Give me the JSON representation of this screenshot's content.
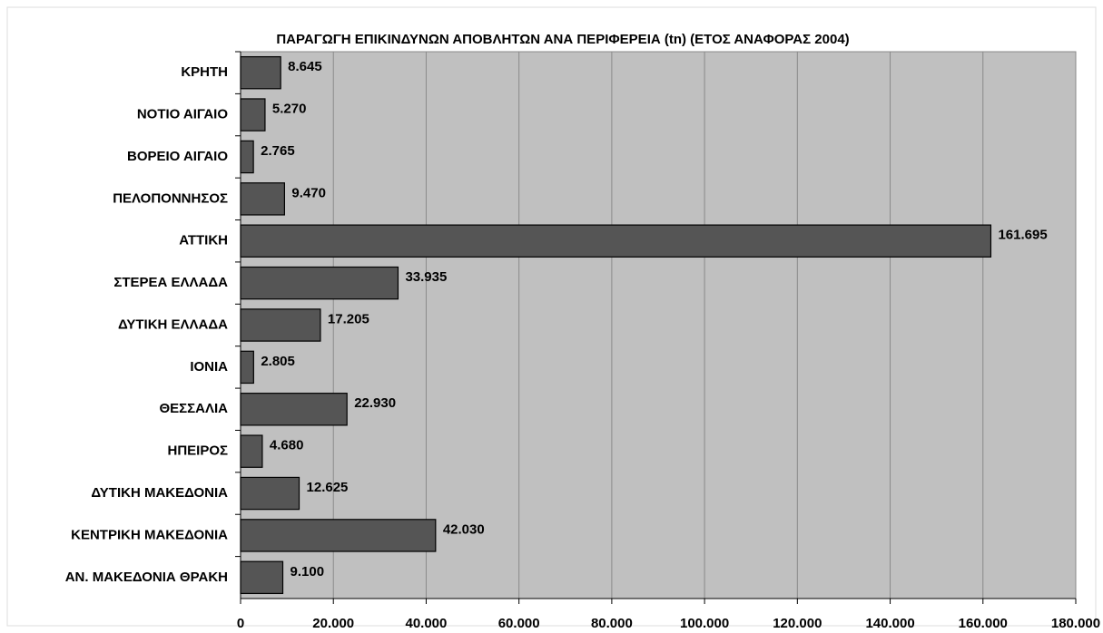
{
  "chart_data": {
    "type": "bar",
    "orientation": "horizontal",
    "title": "ΠΑΡΑΓΩΓΗ ΕΠΙΚΙΝΔΥΝΩΝ ΑΠΟΒΛΗΤΩΝ ΑΝΑ ΠΕΡΙΦΕΡΕΙΑ  (tn)  (ΕΤΟΣ ΑΝΑΦΟΡΑΣ 2004)",
    "categories": [
      "ΚΡΗΤΗ",
      "ΝΟΤΙΟ ΑΙΓΑΙΟ",
      "ΒΟΡΕΙΟ ΑΙΓΑΙΟ",
      "ΠΕΛΟΠΟΝΝΗΣΟΣ",
      "ΑΤΤΙΚΗ",
      "ΣΤΕΡΕΑ ΕΛΛΑΔΑ",
      "ΔΥΤΙΚΗ ΕΛΛΑΔΑ",
      "ΙΟΝΙΑ",
      "ΘΕΣΣΑΛΙΑ",
      "ΗΠΕΙΡΟΣ",
      "ΔΥΤΙΚΗ ΜΑΚΕΔΟΝΙΑ",
      "ΚΕΝΤΡΙΚΗ ΜΑΚΕΔΟΝΙΑ",
      "ΑΝ. ΜΑΚΕΔΟΝΙΑ ΘΡΑΚΗ"
    ],
    "values": [
      8645,
      5270,
      2765,
      9470,
      161695,
      33935,
      17205,
      2805,
      22930,
      4680,
      12625,
      42030,
      9100
    ],
    "value_labels": [
      "8.645",
      "5.270",
      "2.765",
      "9.470",
      "161.695",
      "33.935",
      "17.205",
      "2.805",
      "22.930",
      "4.680",
      "12.625",
      "42.030",
      "9.100"
    ],
    "color": "#555555",
    "plot_background": "#c0c0c0",
    "xlim": [
      0,
      180000
    ],
    "xticks": [
      0,
      {
        "value": 20000,
        "label": "20.000"
      },
      {
        "value": 40000,
        "label": "40.000"
      },
      {
        "value": 60000,
        "label": "60.000"
      },
      {
        "value": 80000,
        "label": "80.000"
      },
      {
        "value": 100000,
        "label": "100.000"
      },
      {
        "value": 120000,
        "label": "120.000"
      },
      {
        "value": 140000,
        "label": "140.000"
      },
      {
        "value": 160000,
        "label": "160.000"
      },
      {
        "value": 180000,
        "label": "180.000"
      }
    ],
    "grid": true
  }
}
